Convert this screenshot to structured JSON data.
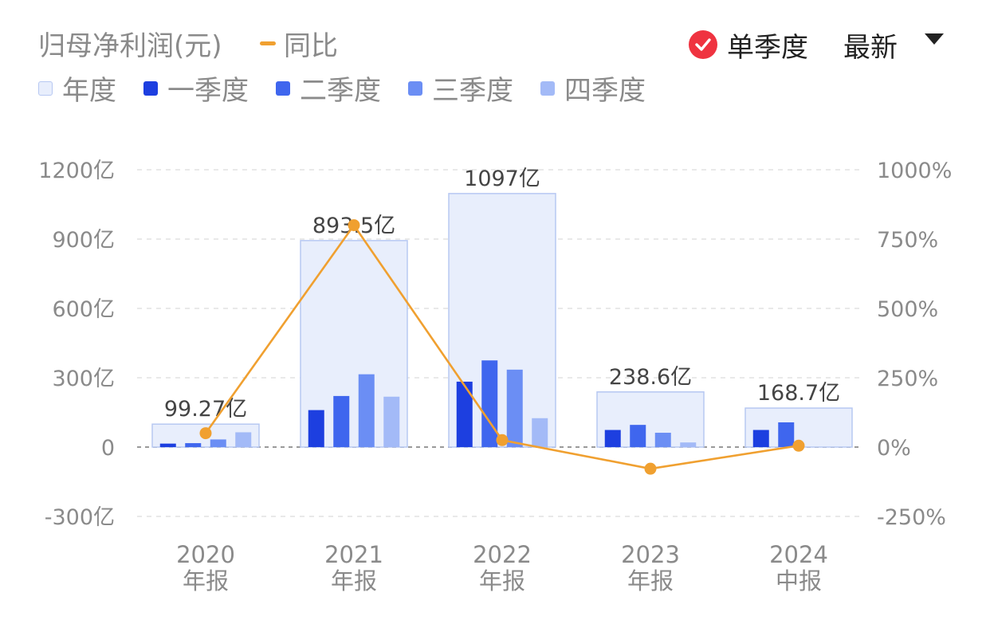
{
  "header": {
    "title": "归母净利润(元)",
    "yoy_label": "同比",
    "single_quarter_label": "单季度",
    "latest_label": "最新"
  },
  "legend": [
    {
      "label": "年度",
      "color": "#E8EEFC"
    },
    {
      "label": "一季度",
      "color": "#1D3FE0"
    },
    {
      "label": "二季度",
      "color": "#3F66EE"
    },
    {
      "label": "三季度",
      "color": "#6B8EF4"
    },
    {
      "label": "四季度",
      "color": "#A3BAF7"
    }
  ],
  "chart_data": {
    "type": "bar",
    "categories": [
      "2020年报",
      "2021年报",
      "2022年报",
      "2023年报",
      "2024中报"
    ],
    "x_tick_labels": [
      [
        "2020",
        "年报"
      ],
      [
        "2021",
        "年报"
      ],
      [
        "2022",
        "年报"
      ],
      [
        "2023",
        "年报"
      ],
      [
        "2024",
        "中报"
      ]
    ],
    "annual": {
      "values_yi": [
        99.27,
        893.5,
        1097,
        238.6,
        168.7
      ],
      "labels": [
        "99.27亿",
        "893.5亿",
        "1097亿",
        "238.6亿",
        "168.7亿"
      ]
    },
    "quarters": [
      {
        "name": "一季度",
        "values_yi": [
          15,
          160,
          283,
          74,
          74
        ]
      },
      {
        "name": "二季度",
        "values_yi": [
          17,
          221,
          375,
          96,
          107
        ]
      },
      {
        "name": "三季度",
        "values_yi": [
          33,
          315,
          335,
          62,
          null
        ]
      },
      {
        "name": "四季度",
        "values_yi": [
          64,
          218,
          125,
          20,
          null
        ]
      }
    ],
    "yoy": {
      "name": "同比",
      "values_pct": [
        50,
        800,
        25,
        -78,
        5
      ]
    },
    "y_left": {
      "ticks": [
        1200,
        900,
        600,
        300,
        0,
        -300
      ],
      "tick_labels": [
        "1200亿",
        "900亿",
        "600亿",
        "300亿",
        "0",
        "-300亿"
      ],
      "ylim": [
        -300,
        1200
      ]
    },
    "y_right": {
      "ticks": [
        1000,
        750,
        500,
        250,
        0,
        -250
      ],
      "tick_labels": [
        "1000%",
        "750%",
        "500%",
        "250%",
        "0%",
        "-250%"
      ],
      "ylim": [
        -250,
        1000
      ]
    },
    "grid": true,
    "colors": {
      "annual_fill": "#E8EEFC",
      "annual_stroke": "#B7C8F2",
      "q1": "#1D3FE0",
      "q2": "#3F66EE",
      "q3": "#6B8EF4",
      "q4": "#A3BAF7",
      "yoy": "#F0A030",
      "check": "#EF3340"
    }
  }
}
